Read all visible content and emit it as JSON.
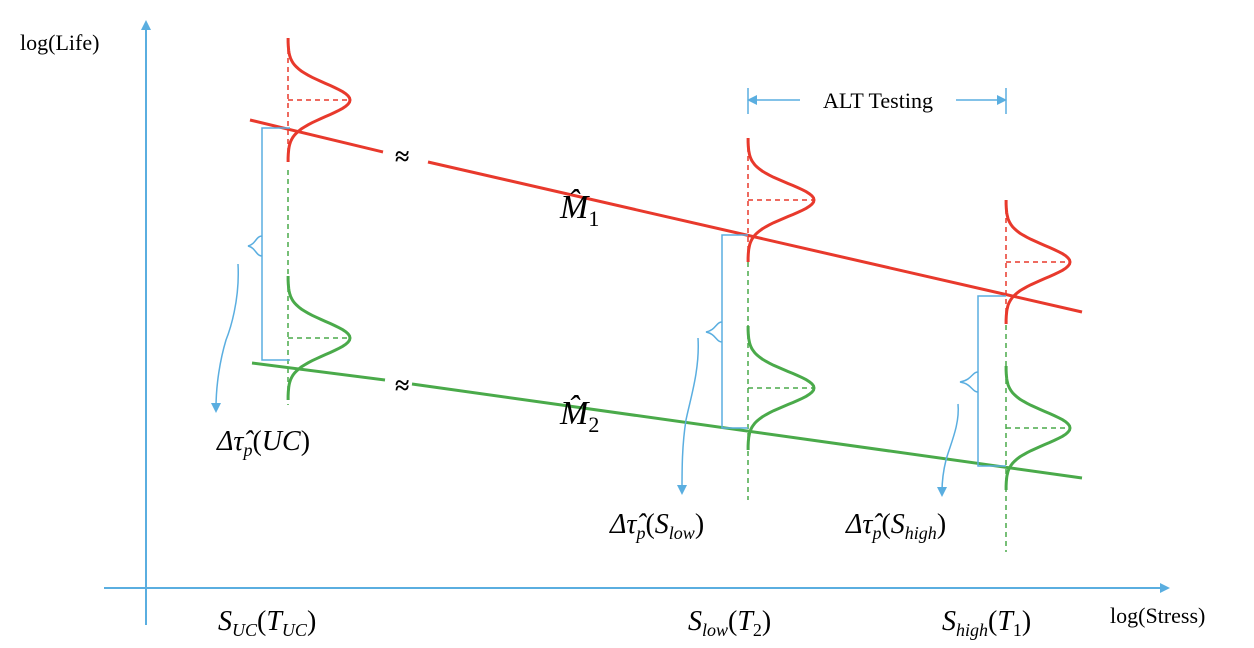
{
  "axes": {
    "y_label": "log(Life)",
    "x_label": "log(Stress)"
  },
  "alt_testing_label": "ALT Testing",
  "models": [
    {
      "name_main": "M̂",
      "name_sub": "1",
      "color": "#e8392c"
    },
    {
      "name_main": "M̂",
      "name_sub": "2",
      "color": "#4aaa4a"
    }
  ],
  "break_symbol": "≈",
  "delta_labels": [
    {
      "prefix": "Δτ̂",
      "sub": "p",
      "arg": "UC"
    },
    {
      "prefix": "Δτ̂",
      "sub": "p",
      "arg_main": "S",
      "arg_sub": "low"
    },
    {
      "prefix": "Δτ̂",
      "sub": "p",
      "arg_main": "S",
      "arg_sub": "high"
    }
  ],
  "stress_labels": [
    {
      "main": "S",
      "sub": "UC",
      "arg_main": "T",
      "arg_sub": "UC"
    },
    {
      "main": "S",
      "sub": "low",
      "arg_main": "T",
      "arg_sub": "2"
    },
    {
      "main": "S",
      "sub": "high",
      "arg_main": "T",
      "arg_sub": "1"
    }
  ],
  "colors": {
    "axis": "#5aaee0",
    "red": "#e8392c",
    "green": "#4aaa4a",
    "blue": "#5aaee0"
  }
}
